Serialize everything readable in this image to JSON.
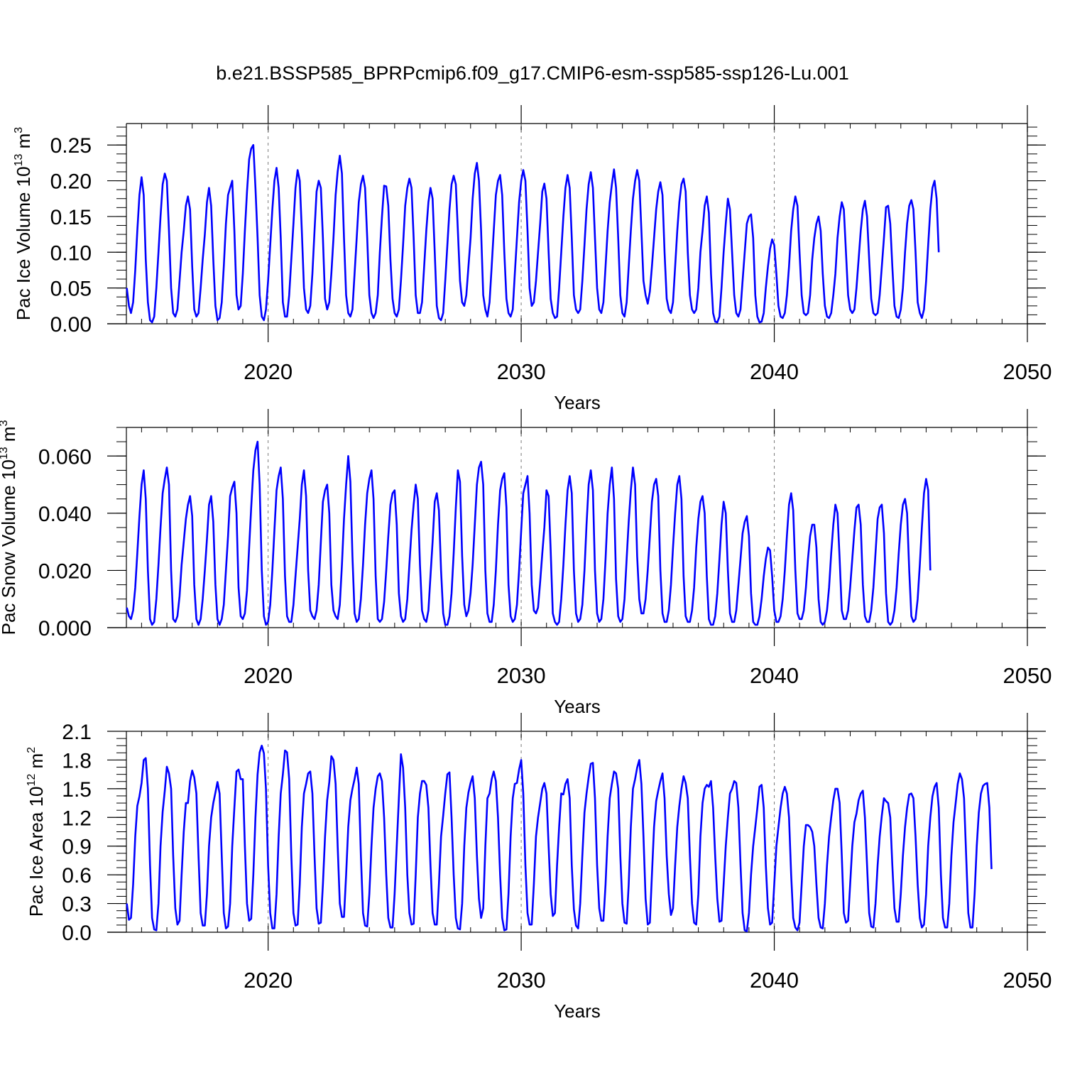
{
  "figure": {
    "title": "b.e21.BSSP585_BPRPcmip6.f09_g17.CMIP6-esm-ssp585-ssp126-Lu.001"
  },
  "chart_data": [
    {
      "type": "line",
      "title": "",
      "xlabel": "Years",
      "ylabel": "Pac Ice Volume 10",
      "ylabel_exp": "13",
      "ylabel_unit": " m",
      "ylabel_unit_exp": "3",
      "xlim": [
        2014.4,
        2050
      ],
      "ylim": [
        0,
        0.28
      ],
      "xticks": [
        2020,
        2030,
        2040,
        2050
      ],
      "yticks": [
        0.0,
        0.05,
        0.1,
        0.15,
        0.2,
        0.25
      ],
      "ytick_labels": [
        "0.00",
        "0.05",
        "0.10",
        "0.15",
        "0.20",
        "0.25"
      ],
      "ref_lines_x": [
        2020,
        2030,
        2040
      ],
      "grid": false,
      "color": "#0000ff",
      "start": 2014.4167,
      "step": 0.08333,
      "values": [
        0.05,
        0.025,
        0.015,
        0.03,
        0.075,
        0.13,
        0.18,
        0.205,
        0.18,
        0.09,
        0.03,
        0.005,
        0.002,
        0.01,
        0.05,
        0.1,
        0.15,
        0.195,
        0.21,
        0.2,
        0.13,
        0.05,
        0.015,
        0.01,
        0.02,
        0.06,
        0.1,
        0.13,
        0.165,
        0.178,
        0.16,
        0.08,
        0.02,
        0.01,
        0.015,
        0.05,
        0.09,
        0.125,
        0.17,
        0.19,
        0.165,
        0.09,
        0.025,
        0.005,
        0.008,
        0.03,
        0.08,
        0.14,
        0.18,
        0.19,
        0.2,
        0.13,
        0.04,
        0.02,
        0.025,
        0.07,
        0.13,
        0.185,
        0.23,
        0.245,
        0.25,
        0.19,
        0.12,
        0.04,
        0.01,
        0.005,
        0.02,
        0.06,
        0.11,
        0.16,
        0.2,
        0.218,
        0.19,
        0.12,
        0.03,
        0.01,
        0.01,
        0.04,
        0.09,
        0.14,
        0.19,
        0.215,
        0.2,
        0.13,
        0.05,
        0.02,
        0.015,
        0.025,
        0.07,
        0.13,
        0.185,
        0.2,
        0.19,
        0.12,
        0.035,
        0.02,
        0.03,
        0.07,
        0.12,
        0.18,
        0.213,
        0.235,
        0.21,
        0.12,
        0.04,
        0.015,
        0.01,
        0.02,
        0.07,
        0.12,
        0.17,
        0.195,
        0.207,
        0.19,
        0.12,
        0.04,
        0.015,
        0.008,
        0.015,
        0.04,
        0.1,
        0.15,
        0.193,
        0.192,
        0.165,
        0.09,
        0.035,
        0.015,
        0.01,
        0.02,
        0.06,
        0.11,
        0.165,
        0.19,
        0.203,
        0.19,
        0.12,
        0.04,
        0.015,
        0.015,
        0.03,
        0.08,
        0.13,
        0.17,
        0.19,
        0.175,
        0.1,
        0.025,
        0.008,
        0.005,
        0.015,
        0.06,
        0.11,
        0.16,
        0.195,
        0.207,
        0.195,
        0.13,
        0.06,
        0.03,
        0.025,
        0.04,
        0.08,
        0.12,
        0.175,
        0.21,
        0.225,
        0.2,
        0.13,
        0.04,
        0.02,
        0.01,
        0.03,
        0.08,
        0.13,
        0.18,
        0.2,
        0.208,
        0.18,
        0.1,
        0.035,
        0.015,
        0.01,
        0.02,
        0.07,
        0.12,
        0.17,
        0.2,
        0.215,
        0.2,
        0.13,
        0.05,
        0.025,
        0.03,
        0.06,
        0.1,
        0.14,
        0.185,
        0.196,
        0.175,
        0.1,
        0.035,
        0.015,
        0.008,
        0.01,
        0.05,
        0.1,
        0.15,
        0.19,
        0.208,
        0.19,
        0.12,
        0.04,
        0.02,
        0.015,
        0.02,
        0.06,
        0.11,
        0.16,
        0.195,
        0.212,
        0.19,
        0.12,
        0.05,
        0.02,
        0.015,
        0.03,
        0.08,
        0.13,
        0.17,
        0.195,
        0.216,
        0.19,
        0.12,
        0.04,
        0.015,
        0.01,
        0.03,
        0.08,
        0.13,
        0.175,
        0.2,
        0.215,
        0.2,
        0.13,
        0.06,
        0.04,
        0.028,
        0.045,
        0.08,
        0.12,
        0.16,
        0.185,
        0.198,
        0.18,
        0.1,
        0.035,
        0.02,
        0.015,
        0.03,
        0.08,
        0.13,
        0.17,
        0.195,
        0.203,
        0.185,
        0.1,
        0.04,
        0.02,
        0.015,
        0.02,
        0.05,
        0.1,
        0.13,
        0.165,
        0.178,
        0.155,
        0.07,
        0.015,
        0.003,
        0.002,
        0.01,
        0.05,
        0.1,
        0.14,
        0.175,
        0.16,
        0.1,
        0.04,
        0.015,
        0.01,
        0.02,
        0.06,
        0.1,
        0.14,
        0.15,
        0.153,
        0.12,
        0.04,
        0.01,
        0.002,
        0.003,
        0.015,
        0.05,
        0.08,
        0.105,
        0.118,
        0.11,
        0.07,
        0.025,
        0.01,
        0.008,
        0.015,
        0.04,
        0.08,
        0.13,
        0.16,
        0.178,
        0.165,
        0.1,
        0.04,
        0.015,
        0.012,
        0.015,
        0.04,
        0.09,
        0.12,
        0.14,
        0.15,
        0.13,
        0.07,
        0.025,
        0.01,
        0.008,
        0.015,
        0.04,
        0.07,
        0.12,
        0.15,
        0.17,
        0.16,
        0.1,
        0.04,
        0.02,
        0.015,
        0.02,
        0.05,
        0.09,
        0.13,
        0.16,
        0.172,
        0.15,
        0.09,
        0.035,
        0.015,
        0.012,
        0.015,
        0.04,
        0.08,
        0.12,
        0.163,
        0.165,
        0.14,
        0.08,
        0.025,
        0.01,
        0.008,
        0.02,
        0.05,
        0.1,
        0.14,
        0.165,
        0.173,
        0.16,
        0.1,
        0.03,
        0.015,
        0.008,
        0.02,
        0.06,
        0.11,
        0.16,
        0.19,
        0.2,
        0.175,
        0.1
      ]
    },
    {
      "type": "line",
      "title": "",
      "xlabel": "Years",
      "ylabel": "Pac Snow Volume 10",
      "ylabel_exp": "13",
      "ylabel_unit": " m",
      "ylabel_unit_exp": "3",
      "xlim": [
        2014.4,
        2050
      ],
      "ylim": [
        0,
        0.07
      ],
      "xticks": [
        2020,
        2030,
        2040,
        2050
      ],
      "yticks": [
        0.0,
        0.02,
        0.04,
        0.06
      ],
      "ytick_labels": [
        "0.000",
        "0.020",
        "0.040",
        "0.060"
      ],
      "ref_lines_x": [
        2020,
        2030,
        2040
      ],
      "grid": false,
      "color": "#0000ff",
      "start": 2014.4167,
      "step": 0.08333,
      "values": [
        0.007,
        0.004,
        0.003,
        0.006,
        0.014,
        0.026,
        0.039,
        0.05,
        0.055,
        0.045,
        0.02,
        0.003,
        0.001,
        0.002,
        0.01,
        0.022,
        0.035,
        0.047,
        0.052,
        0.056,
        0.05,
        0.02,
        0.003,
        0.002,
        0.004,
        0.011,
        0.022,
        0.03,
        0.038,
        0.043,
        0.046,
        0.039,
        0.015,
        0.003,
        0.001,
        0.003,
        0.01,
        0.02,
        0.031,
        0.043,
        0.046,
        0.037,
        0.015,
        0.003,
        0.001,
        0.003,
        0.008,
        0.02,
        0.032,
        0.046,
        0.049,
        0.051,
        0.04,
        0.014,
        0.004,
        0.003,
        0.005,
        0.013,
        0.028,
        0.042,
        0.055,
        0.062,
        0.065,
        0.05,
        0.02,
        0.004,
        0.001,
        0.002,
        0.008,
        0.02,
        0.034,
        0.048,
        0.053,
        0.056,
        0.045,
        0.018,
        0.004,
        0.002,
        0.002,
        0.008,
        0.018,
        0.028,
        0.038,
        0.05,
        0.055,
        0.046,
        0.02,
        0.006,
        0.004,
        0.003,
        0.006,
        0.015,
        0.03,
        0.044,
        0.048,
        0.05,
        0.04,
        0.015,
        0.006,
        0.004,
        0.003,
        0.008,
        0.022,
        0.038,
        0.05,
        0.06,
        0.051,
        0.025,
        0.005,
        0.002,
        0.003,
        0.01,
        0.022,
        0.036,
        0.047,
        0.052,
        0.055,
        0.045,
        0.018,
        0.003,
        0.002,
        0.003,
        0.009,
        0.02,
        0.032,
        0.043,
        0.047,
        0.048,
        0.036,
        0.012,
        0.004,
        0.002,
        0.003,
        0.01,
        0.022,
        0.034,
        0.043,
        0.05,
        0.045,
        0.022,
        0.006,
        0.003,
        0.002,
        0.006,
        0.018,
        0.03,
        0.044,
        0.047,
        0.041,
        0.02,
        0.005,
        0.001,
        0.001,
        0.004,
        0.012,
        0.026,
        0.042,
        0.055,
        0.051,
        0.025,
        0.008,
        0.004,
        0.006,
        0.012,
        0.022,
        0.036,
        0.05,
        0.056,
        0.058,
        0.05,
        0.02,
        0.005,
        0.002,
        0.002,
        0.008,
        0.02,
        0.036,
        0.048,
        0.052,
        0.054,
        0.042,
        0.015,
        0.004,
        0.002,
        0.003,
        0.008,
        0.02,
        0.034,
        0.047,
        0.05,
        0.053,
        0.04,
        0.015,
        0.006,
        0.005,
        0.007,
        0.016,
        0.026,
        0.035,
        0.048,
        0.046,
        0.027,
        0.005,
        0.002,
        0.001,
        0.002,
        0.01,
        0.022,
        0.036,
        0.048,
        0.053,
        0.047,
        0.02,
        0.005,
        0.002,
        0.003,
        0.008,
        0.02,
        0.036,
        0.05,
        0.055,
        0.048,
        0.02,
        0.005,
        0.002,
        0.003,
        0.01,
        0.024,
        0.04,
        0.05,
        0.056,
        0.045,
        0.017,
        0.004,
        0.002,
        0.003,
        0.01,
        0.024,
        0.037,
        0.048,
        0.056,
        0.05,
        0.025,
        0.01,
        0.005,
        0.005,
        0.01,
        0.02,
        0.032,
        0.044,
        0.05,
        0.052,
        0.046,
        0.02,
        0.005,
        0.002,
        0.002,
        0.006,
        0.015,
        0.028,
        0.04,
        0.05,
        0.053,
        0.045,
        0.018,
        0.004,
        0.002,
        0.002,
        0.006,
        0.014,
        0.028,
        0.038,
        0.044,
        0.046,
        0.04,
        0.018,
        0.003,
        0.001,
        0.001,
        0.004,
        0.012,
        0.024,
        0.036,
        0.044,
        0.04,
        0.02,
        0.005,
        0.002,
        0.002,
        0.006,
        0.015,
        0.024,
        0.033,
        0.037,
        0.039,
        0.032,
        0.012,
        0.002,
        0.001,
        0.001,
        0.004,
        0.01,
        0.018,
        0.024,
        0.028,
        0.027,
        0.018,
        0.006,
        0.002,
        0.002,
        0.004,
        0.01,
        0.02,
        0.032,
        0.043,
        0.047,
        0.041,
        0.02,
        0.005,
        0.003,
        0.003,
        0.006,
        0.014,
        0.024,
        0.032,
        0.036,
        0.036,
        0.028,
        0.01,
        0.002,
        0.001,
        0.002,
        0.006,
        0.014,
        0.026,
        0.036,
        0.043,
        0.04,
        0.024,
        0.006,
        0.003,
        0.003,
        0.006,
        0.014,
        0.024,
        0.034,
        0.042,
        0.043,
        0.036,
        0.015,
        0.004,
        0.002,
        0.002,
        0.006,
        0.014,
        0.026,
        0.038,
        0.042,
        0.043,
        0.033,
        0.012,
        0.002,
        0.001,
        0.002,
        0.006,
        0.014,
        0.026,
        0.036,
        0.043,
        0.045,
        0.04,
        0.02,
        0.004,
        0.002,
        0.003,
        0.01,
        0.022,
        0.035,
        0.047,
        0.052,
        0.048,
        0.02
      ]
    },
    {
      "type": "line",
      "title": "",
      "xlabel": "Years",
      "ylabel": "Pac Ice Area 10",
      "ylabel_exp": "12",
      "ylabel_unit": " m",
      "ylabel_unit_exp": "2",
      "xlim": [
        2014.4,
        2050
      ],
      "ylim": [
        0,
        2.1
      ],
      "xticks": [
        2020,
        2030,
        2040,
        2050
      ],
      "yticks": [
        0.0,
        0.3,
        0.6,
        0.9,
        1.2,
        1.5,
        1.8,
        2.1
      ],
      "ytick_labels": [
        "0.0",
        "0.3",
        "0.6",
        "0.9",
        "1.2",
        "1.5",
        "1.8",
        "2.1"
      ],
      "ref_lines_x": [
        2020,
        2030,
        2040
      ],
      "grid": false,
      "color": "#0000ff",
      "start": 2014.4167,
      "step": 0.08333,
      "values": [
        0.3,
        0.13,
        0.15,
        0.5,
        1.0,
        1.32,
        1.42,
        1.56,
        1.8,
        1.82,
        1.5,
        0.7,
        0.15,
        0.03,
        0.02,
        0.3,
        0.9,
        1.26,
        1.48,
        1.73,
        1.66,
        1.5,
        0.8,
        0.25,
        0.08,
        0.12,
        0.6,
        1.05,
        1.35,
        1.35,
        1.58,
        1.69,
        1.62,
        1.45,
        0.8,
        0.2,
        0.07,
        0.07,
        0.4,
        0.9,
        1.2,
        1.35,
        1.46,
        1.57,
        1.45,
        0.8,
        0.2,
        0.04,
        0.06,
        0.3,
        0.9,
        1.3,
        1.68,
        1.7,
        1.6,
        1.6,
        0.9,
        0.3,
        0.12,
        0.14,
        0.6,
        1.2,
        1.65,
        1.88,
        1.95,
        1.87,
        1.5,
        0.7,
        0.2,
        0.04,
        0.04,
        0.4,
        1.0,
        1.45,
        1.65,
        1.9,
        1.88,
        1.6,
        0.8,
        0.2,
        0.07,
        0.08,
        0.5,
        1.1,
        1.45,
        1.55,
        1.66,
        1.68,
        1.45,
        0.8,
        0.25,
        0.09,
        0.1,
        0.5,
        1.0,
        1.38,
        1.57,
        1.84,
        1.8,
        1.55,
        0.9,
        0.3,
        0.16,
        0.16,
        0.6,
        1.1,
        1.38,
        1.5,
        1.6,
        1.72,
        1.55,
        0.8,
        0.2,
        0.07,
        0.06,
        0.4,
        0.9,
        1.3,
        1.5,
        1.63,
        1.66,
        1.58,
        1.2,
        0.6,
        0.15,
        0.05,
        0.05,
        0.4,
        0.9,
        1.4,
        1.86,
        1.72,
        1.3,
        0.6,
        0.2,
        0.08,
        0.09,
        0.6,
        1.2,
        1.45,
        1.58,
        1.58,
        1.54,
        1.3,
        0.7,
        0.2,
        0.08,
        0.08,
        0.5,
        1.0,
        1.22,
        1.45,
        1.65,
        1.67,
        1.2,
        0.6,
        0.15,
        0.04,
        0.03,
        0.3,
        0.9,
        1.3,
        1.46,
        1.56,
        1.63,
        1.4,
        0.8,
        0.35,
        0.15,
        0.25,
        0.9,
        1.4,
        1.45,
        1.6,
        1.68,
        1.58,
        1.2,
        0.6,
        0.15,
        0.02,
        0.03,
        0.4,
        1.0,
        1.4,
        1.55,
        1.56,
        1.7,
        1.8,
        1.45,
        0.7,
        0.2,
        0.08,
        0.08,
        0.5,
        1.0,
        1.2,
        1.35,
        1.5,
        1.56,
        1.45,
        0.9,
        0.4,
        0.17,
        0.2,
        0.7,
        1.1,
        1.45,
        1.44,
        1.55,
        1.6,
        1.4,
        0.7,
        0.24,
        0.07,
        0.04,
        0.3,
        0.8,
        1.25,
        1.45,
        1.62,
        1.76,
        1.77,
        1.4,
        0.7,
        0.25,
        0.12,
        0.12,
        0.5,
        1.0,
        1.4,
        1.55,
        1.68,
        1.66,
        1.5,
        0.8,
        0.3,
        0.1,
        0.09,
        0.5,
        1.1,
        1.5,
        1.6,
        1.72,
        1.8,
        1.55,
        1.0,
        0.35,
        0.08,
        0.1,
        0.6,
        1.1,
        1.37,
        1.48,
        1.58,
        1.66,
        1.4,
        0.8,
        0.4,
        0.18,
        0.25,
        0.7,
        1.1,
        1.32,
        1.5,
        1.63,
        1.56,
        1.4,
        0.8,
        0.3,
        0.1,
        0.08,
        0.4,
        1.0,
        1.35,
        1.5,
        1.54,
        1.52,
        1.58,
        1.3,
        0.8,
        0.35,
        0.11,
        0.12,
        0.5,
        0.9,
        1.2,
        1.45,
        1.5,
        1.58,
        1.56,
        1.3,
        0.7,
        0.2,
        0.02,
        0.01,
        0.2,
        0.6,
        0.9,
        1.1,
        1.3,
        1.52,
        1.54,
        1.3,
        0.7,
        0.25,
        0.08,
        0.1,
        0.5,
        0.9,
        1.1,
        1.3,
        1.45,
        1.52,
        1.45,
        1.2,
        0.6,
        0.15,
        0.05,
        0.02,
        0.1,
        0.5,
        0.9,
        1.12,
        1.12,
        1.1,
        1.05,
        0.9,
        0.5,
        0.15,
        0.05,
        0.04,
        0.3,
        0.7,
        1.0,
        1.2,
        1.38,
        1.5,
        1.5,
        1.35,
        0.8,
        0.2,
        0.1,
        0.12,
        0.5,
        0.9,
        1.15,
        1.24,
        1.38,
        1.45,
        1.48,
        1.2,
        0.7,
        0.2,
        0.06,
        0.05,
        0.3,
        0.7,
        1.0,
        1.22,
        1.4,
        1.37,
        1.35,
        1.2,
        0.7,
        0.25,
        0.11,
        0.11,
        0.4,
        0.8,
        1.1,
        1.3,
        1.44,
        1.45,
        1.4,
        1.0,
        0.5,
        0.15,
        0.05,
        0.08,
        0.4,
        0.9,
        1.2,
        1.42,
        1.52,
        1.56,
        1.3,
        0.6,
        0.15,
        0.05,
        0.05,
        0.3,
        0.8,
        1.15,
        1.35,
        1.55,
        1.66,
        1.6,
        1.4,
        0.8,
        0.2,
        0.05,
        0.05,
        0.4,
        0.9,
        1.25,
        1.45,
        1.53,
        1.55,
        1.56,
        1.3,
        0.66
      ]
    }
  ]
}
